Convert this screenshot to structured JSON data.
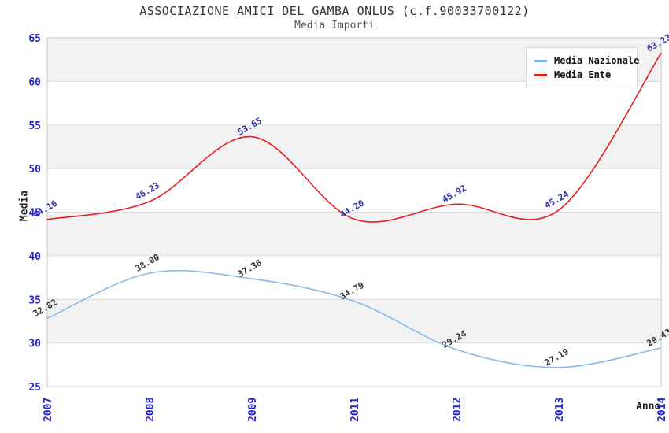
{
  "header": {
    "title": "ASSOCIAZIONE AMICI DEL GAMBA ONLUS (c.f.90033700122)",
    "subtitle": "Media Importi"
  },
  "chart_data": {
    "type": "line",
    "title": "ASSOCIAZIONE AMICI DEL GAMBA ONLUS (c.f.90033700122)",
    "subtitle": "Media Importi",
    "xlabel": "Anno",
    "ylabel": "Media",
    "categories": [
      "2007",
      "2008",
      "2009",
      "2011",
      "2012",
      "2013",
      "2014"
    ],
    "series": [
      {
        "name": "Media Nazionale",
        "color": "#89b9e8",
        "label_color": "#333333",
        "values": [
          32.82,
          38.0,
          37.36,
          34.79,
          29.24,
          27.19,
          29.43
        ]
      },
      {
        "name": "Media Ente",
        "color": "#e81f1f",
        "label_color": "#2d2da8",
        "values": [
          44.16,
          46.23,
          53.65,
          44.2,
          45.92,
          45.24,
          63.23
        ]
      }
    ],
    "ylim": [
      25,
      65
    ],
    "y_ticks": [
      25,
      30,
      35,
      40,
      45,
      50,
      55,
      60,
      65
    ],
    "value_label_decimals": 2,
    "legend_position": "top-right",
    "grid": "horizontal",
    "band_fill": "#f2f2f2",
    "grid_color": "#dcdcdc",
    "plot_border_color": "#c8c8c8",
    "tick_label_color": "#2323cc"
  }
}
